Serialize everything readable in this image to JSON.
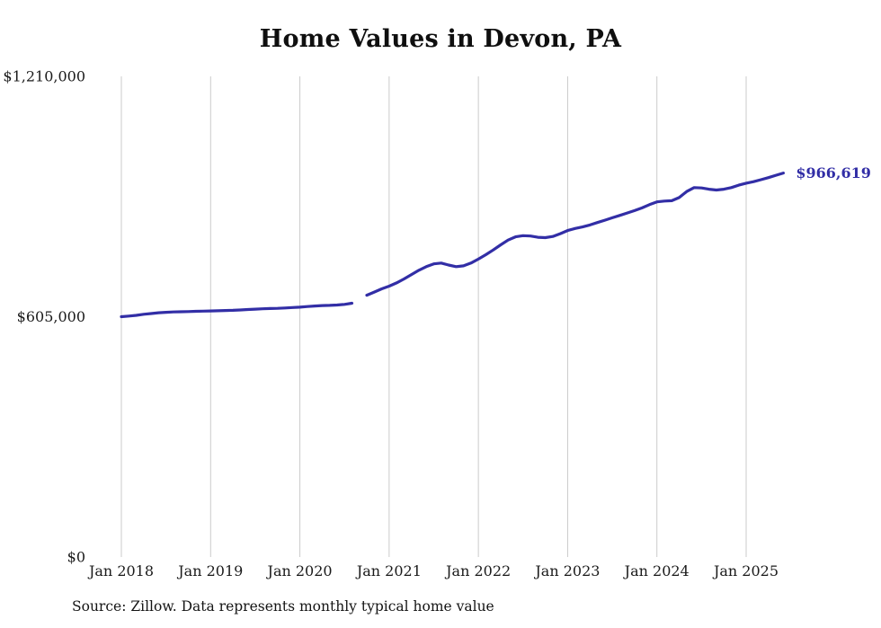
{
  "title": "Home Values in Devon, PA",
  "source": "Source: Zillow. Data represents monthly typical home value",
  "colors": {
    "line": "#322ea6",
    "grid": "#cbcbcb",
    "text": "#1a1a1a",
    "background": "#ffffff"
  },
  "chart_data": {
    "type": "line",
    "title": "Home Values in Devon, PA",
    "xlabel": "",
    "ylabel": "",
    "ylim": [
      0,
      1210000
    ],
    "grid": "vertical-only",
    "legend": "none",
    "y_ticks": [
      {
        "value": 0,
        "label": "$0"
      },
      {
        "value": 605000,
        "label": "$605,000"
      },
      {
        "value": 1210000,
        "label": "$1,210,000"
      }
    ],
    "x_tick_labels": [
      "Jan 2018",
      "Jan 2019",
      "Jan 2020",
      "Jan 2021",
      "Jan 2022",
      "Jan 2023",
      "Jan 2024",
      "Jan 2025"
    ],
    "end_annotation": {
      "text": "$966,619",
      "position": "line-end"
    },
    "x": [
      "2018-01",
      "2018-02",
      "2018-03",
      "2018-04",
      "2018-05",
      "2018-06",
      "2018-07",
      "2018-08",
      "2018-09",
      "2018-10",
      "2018-11",
      "2018-12",
      "2019-01",
      "2019-02",
      "2019-03",
      "2019-04",
      "2019-05",
      "2019-06",
      "2019-07",
      "2019-08",
      "2019-09",
      "2019-10",
      "2019-11",
      "2019-12",
      "2020-01",
      "2020-02",
      "2020-03",
      "2020-04",
      "2020-05",
      "2020-06",
      "2020-07",
      "2020-08",
      "2020-09",
      "2020-10",
      "2020-11",
      "2020-12",
      "2021-01",
      "2021-02",
      "2021-03",
      "2021-04",
      "2021-05",
      "2021-06",
      "2021-07",
      "2021-08",
      "2021-09",
      "2021-10",
      "2021-11",
      "2021-12",
      "2022-01",
      "2022-02",
      "2022-03",
      "2022-04",
      "2022-05",
      "2022-06",
      "2022-07",
      "2022-08",
      "2022-09",
      "2022-10",
      "2022-11",
      "2022-12",
      "2023-01",
      "2023-02",
      "2023-03",
      "2023-04",
      "2023-05",
      "2023-06",
      "2023-07",
      "2023-08",
      "2023-09",
      "2023-10",
      "2023-11",
      "2023-12",
      "2024-01",
      "2024-02",
      "2024-03",
      "2024-04",
      "2024-05",
      "2024-06",
      "2024-07",
      "2024-08",
      "2024-09",
      "2024-10",
      "2024-11",
      "2024-12",
      "2025-01",
      "2025-02",
      "2025-03",
      "2025-04",
      "2025-05",
      "2025-06"
    ],
    "values": [
      605000,
      606500,
      608500,
      611000,
      613000,
      615000,
      616000,
      617000,
      617500,
      618000,
      618500,
      619000,
      619500,
      620000,
      620500,
      621000,
      622000,
      623000,
      624000,
      625000,
      625500,
      626000,
      627000,
      628000,
      629000,
      630500,
      632000,
      633000,
      633500,
      634500,
      636000,
      639000,
      null,
      659000,
      667000,
      675000,
      682000,
      690000,
      700000,
      711000,
      722000,
      731000,
      738000,
      740000,
      735000,
      731000,
      733000,
      740000,
      750000,
      761000,
      773000,
      786000,
      798000,
      806000,
      809000,
      808000,
      805000,
      804000,
      807000,
      814000,
      822000,
      827000,
      831000,
      836000,
      842000,
      848000,
      854000,
      860000,
      866000,
      872000,
      879000,
      887000,
      894000,
      896000,
      897000,
      905000,
      920000,
      930000,
      929000,
      926000,
      924000,
      926000,
      930000,
      936000,
      941000,
      945000,
      950000,
      955000,
      961000,
      966619
    ]
  }
}
